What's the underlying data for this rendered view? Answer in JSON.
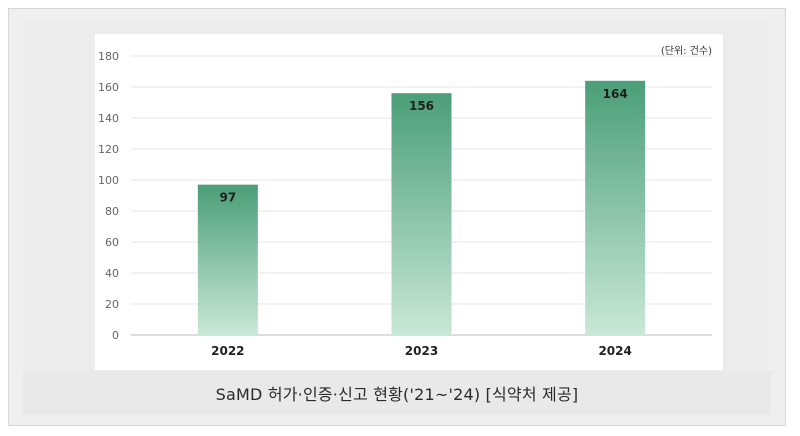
{
  "caption": "SaMD 허가·인증·신고 현황('21~'24) [식약처 제공]",
  "colors": {
    "bar_top": "#4a9e78",
    "bar_bottom": "#c9e8d8",
    "grid": "#e6e6e6",
    "axis": "#bbbbbb"
  },
  "chart_data": {
    "type": "bar",
    "categories": [
      "2022",
      "2023",
      "2024"
    ],
    "values": [
      97,
      156,
      164
    ],
    "unit_note": "(단위: 건수)",
    "ylim": [
      0,
      180
    ],
    "yticks": [
      0,
      20,
      40,
      60,
      80,
      100,
      120,
      140,
      160,
      180
    ],
    "grid": true,
    "data_labels": true
  }
}
